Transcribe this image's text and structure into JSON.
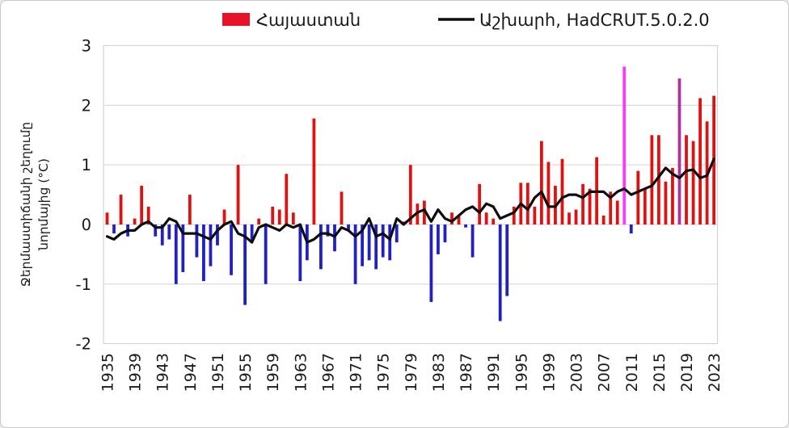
{
  "legend": {
    "items": [
      {
        "label": "Հայաստան",
        "swatch": "rect",
        "color": "#E8132A"
      },
      {
        "label": "Աշխարհ, HadCRUT.5.0.2.0",
        "swatch": "line",
        "color": "#0D0D0D"
      }
    ]
  },
  "y_axis": {
    "title_lines": [
      "Ջերմաստիճանի շեղումը",
      "նորմայից (°C)"
    ],
    "ticks": [
      "3",
      "2",
      "1",
      "0",
      "-1",
      "-2"
    ]
  },
  "x_axis": {
    "ticks": [
      "1935",
      "1939",
      "1943",
      "1947",
      "1951",
      "1955",
      "1959",
      "1963",
      "1967",
      "1971",
      "1975",
      "1979",
      "1983",
      "1987",
      "1991",
      "1995",
      "1999",
      "2003",
      "2007",
      "2011",
      "2015",
      "2019",
      "2023"
    ]
  },
  "chart_data": {
    "type": "bar+line",
    "title": "",
    "xlabel": "",
    "ylabel": "Ջերմաստիճանի շեղումը նորմայից (°C)",
    "x_start": 1935,
    "x_end": 2023,
    "ylim": [
      -2,
      3
    ],
    "grid": true,
    "legend_position": "top",
    "y_gridlines": [
      3,
      2,
      1,
      0,
      -1,
      -2
    ],
    "series": [
      {
        "name": "Հայաստան",
        "type": "bar",
        "color_positive": "#DF1212",
        "color_negative": "#2121C3",
        "highlight_colors": {
          "2010": "#F93BF9",
          "2018": "#B03399"
        },
        "values": [
          0.2,
          -0.15,
          0.5,
          -0.2,
          0.1,
          0.65,
          0.3,
          -0.2,
          -0.35,
          -0.25,
          -1.0,
          -0.8,
          0.5,
          -0.55,
          -0.95,
          -0.7,
          -0.35,
          0.25,
          -0.85,
          1.0,
          -1.35,
          -0.3,
          0.1,
          -1.0,
          0.3,
          0.25,
          0.85,
          0.2,
          -0.95,
          -0.6,
          1.78,
          -0.75,
          -0.2,
          -0.45,
          0.55,
          -0.1,
          -1.0,
          -0.7,
          -0.6,
          -0.75,
          -0.55,
          -0.6,
          -0.3,
          0.05,
          1.0,
          0.35,
          0.4,
          -1.3,
          -0.5,
          -0.3,
          0.2,
          0.15,
          -0.05,
          -0.55,
          0.68,
          0.2,
          0.1,
          -1.62,
          -1.2,
          0.3,
          0.7,
          0.7,
          0.3,
          1.4,
          1.05,
          0.65,
          1.1,
          0.2,
          0.25,
          0.68,
          0.6,
          1.13,
          0.15,
          0.55,
          0.4,
          2.65,
          -0.15,
          0.9,
          0.6,
          1.5,
          1.5,
          0.72,
          0.95,
          2.45,
          1.5,
          1.4,
          2.12,
          1.73,
          2.16
        ]
      },
      {
        "name": "Աշխարհ, HadCRUT.5.0.2.0",
        "type": "line",
        "color": "#0D0D0D",
        "values": [
          -0.2,
          -0.25,
          -0.15,
          -0.1,
          -0.1,
          0.0,
          0.05,
          -0.05,
          -0.05,
          0.1,
          0.05,
          -0.15,
          -0.15,
          -0.15,
          -0.2,
          -0.25,
          -0.1,
          0.0,
          0.05,
          -0.15,
          -0.2,
          -0.3,
          -0.05,
          0.0,
          -0.05,
          -0.1,
          0.0,
          -0.05,
          0.0,
          -0.3,
          -0.25,
          -0.15,
          -0.15,
          -0.2,
          -0.05,
          -0.1,
          -0.2,
          -0.1,
          0.1,
          -0.2,
          -0.15,
          -0.25,
          0.1,
          0.0,
          0.1,
          0.2,
          0.25,
          0.05,
          0.25,
          0.1,
          0.05,
          0.15,
          0.25,
          0.3,
          0.2,
          0.35,
          0.3,
          0.1,
          0.15,
          0.2,
          0.35,
          0.25,
          0.45,
          0.55,
          0.3,
          0.3,
          0.45,
          0.5,
          0.5,
          0.45,
          0.55,
          0.55,
          0.55,
          0.45,
          0.55,
          0.6,
          0.5,
          0.55,
          0.6,
          0.65,
          0.8,
          0.95,
          0.85,
          0.78,
          0.9,
          0.92,
          0.78,
          0.82,
          1.1
        ]
      }
    ]
  },
  "colors": {
    "grid": "#D9D9D9",
    "plot_border": "#D4D4D4",
    "background": "#FFFFFF"
  }
}
